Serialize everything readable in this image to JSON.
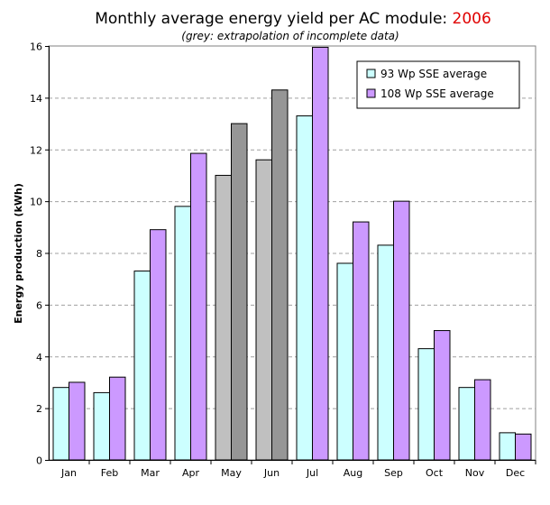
{
  "chart_data": {
    "type": "bar",
    "title": "Monthly average energy yield per AC module: ",
    "title_year": "2006",
    "subtitle": "(grey: extrapolation of incomplete data)",
    "ylabel": "Energy production (kWh)",
    "xlabel": "",
    "ylim": [
      0,
      16
    ],
    "yticks": [
      "0",
      "2",
      "4",
      "6",
      "8",
      "10",
      "12",
      "14",
      "16"
    ],
    "grid": "horizontal dashed",
    "legend_position": "top-right",
    "categories": [
      "Jan",
      "Feb",
      "Mar",
      "Apr",
      "May",
      "Jun",
      "Jul",
      "Aug",
      "Sep",
      "Oct",
      "Nov",
      "Dec"
    ],
    "extrapolated_categories": [
      "May",
      "Jun"
    ],
    "series": [
      {
        "name": "93 Wp SSE average",
        "color": "#ccffff",
        "extrapolated_color": "#c0c0c0",
        "values": [
          2.8,
          2.6,
          7.3,
          9.8,
          11.0,
          11.6,
          13.3,
          7.6,
          8.3,
          4.3,
          2.8,
          1.05
        ]
      },
      {
        "name": "108 Wp SSE average",
        "color": "#cc99ff",
        "extrapolated_color": "#969696",
        "values": [
          3.0,
          3.2,
          8.9,
          11.85,
          13.0,
          14.3,
          15.95,
          9.2,
          10.0,
          5.0,
          3.1,
          1.0
        ]
      }
    ]
  }
}
